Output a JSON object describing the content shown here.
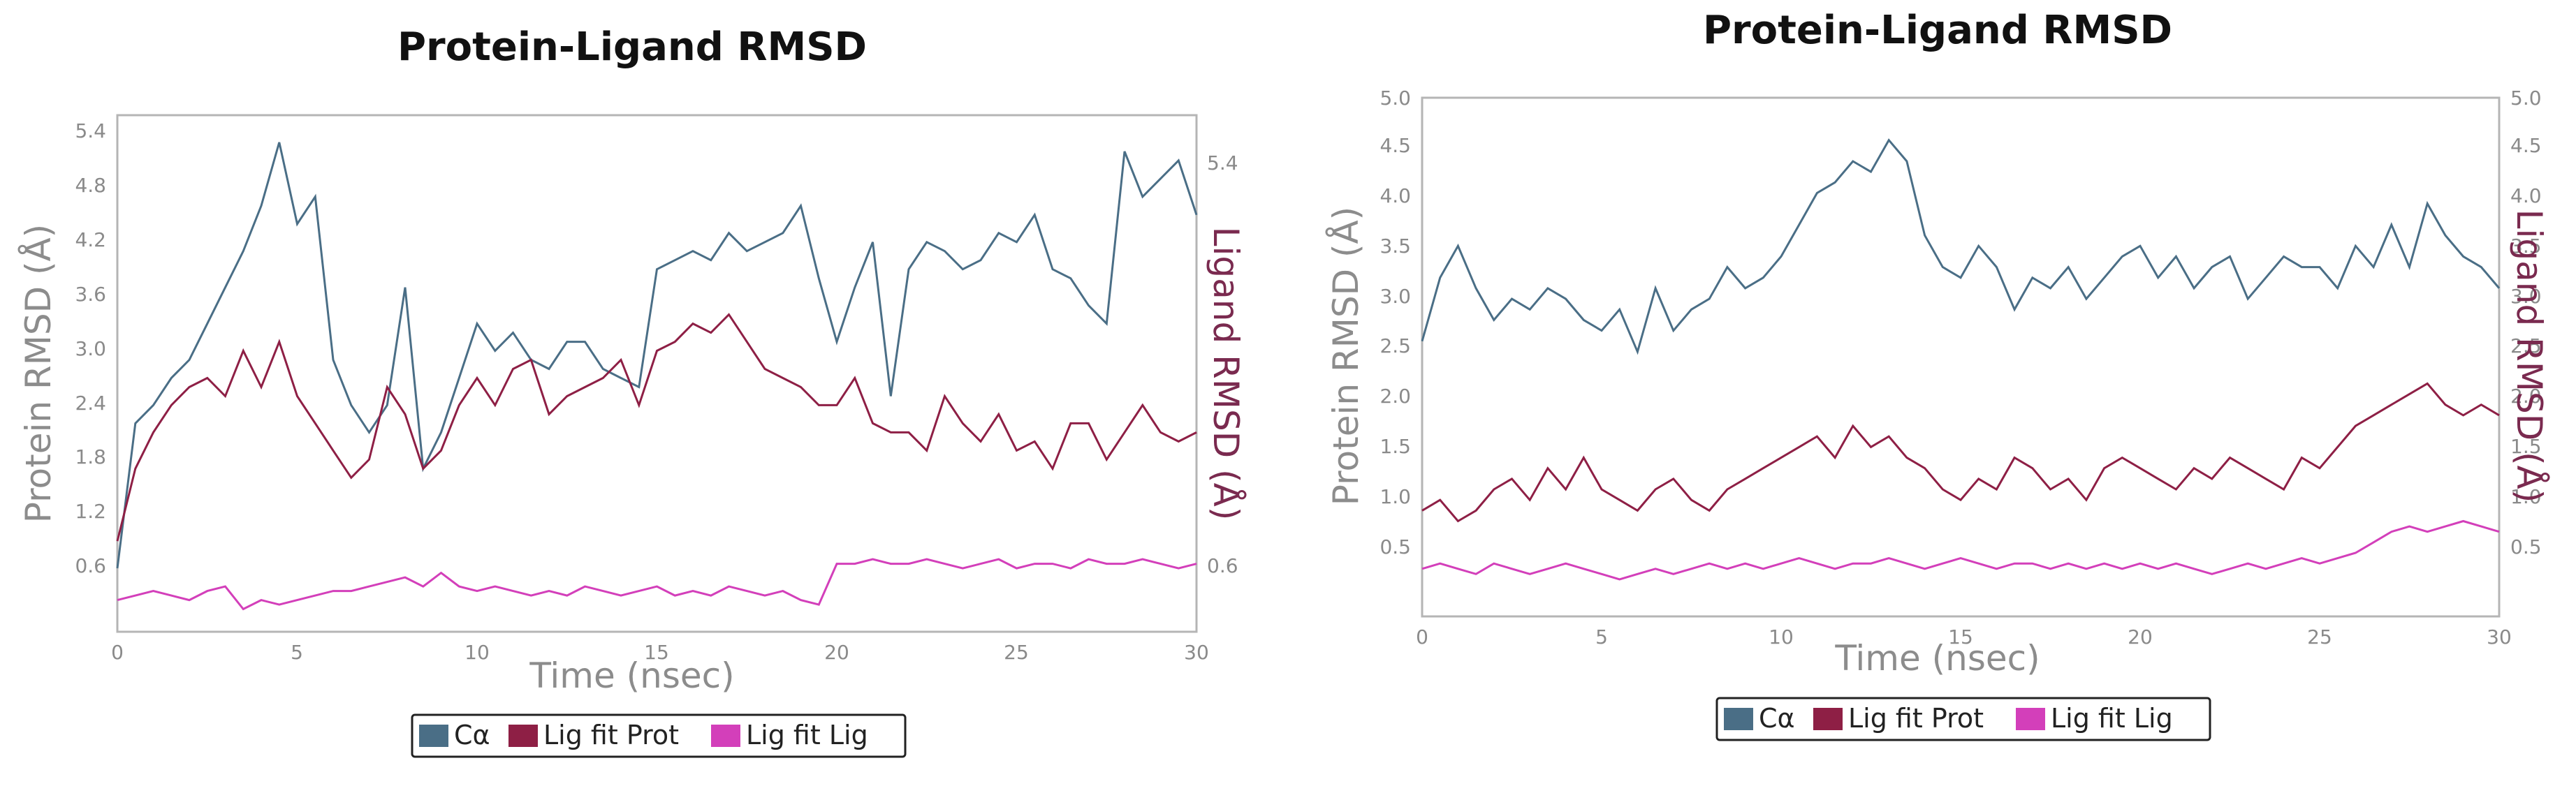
{
  "colors": {
    "ca": "#4a6e86",
    "lig_prot": "#8e1f45",
    "lig_lig": "#d33fba",
    "tick": "#8a8a8a"
  },
  "chart_data": [
    {
      "type": "line",
      "title": "Protein-Ligand RMSD",
      "xlabel": "Time (nsec)",
      "ylabel": "Protein RMSD (Å)",
      "ylabel_right": "Ligand RMSD (Å)",
      "xlim": [
        0,
        30
      ],
      "ylim": [
        0.1,
        5.8
      ],
      "xticks": [
        0,
        5,
        10,
        15,
        20,
        25,
        30
      ],
      "yticks": [
        "0.6",
        "1.2",
        "1.8",
        "2.4",
        "3.0",
        "3.6",
        "4.2",
        "4.8",
        "5.4"
      ],
      "yticks_right": [
        "0.6",
        "5.4"
      ],
      "legend": [
        "Cα",
        "Lig fit Prot",
        "Lig fit Lig"
      ],
      "series": [
        {
          "name": "Cα",
          "x": [
            0,
            0.5,
            1,
            1.5,
            2,
            2.5,
            3,
            3.5,
            4,
            4.5,
            5,
            5.5,
            6,
            6.5,
            7,
            7.5,
            8,
            8.5,
            9,
            9.5,
            10,
            10.5,
            11,
            11.5,
            12,
            12.5,
            13,
            13.5,
            14,
            14.5,
            15,
            15.5,
            16,
            16.5,
            17,
            17.5,
            18,
            18.5,
            19,
            19.5,
            20,
            20.5,
            21,
            21.5,
            22,
            22.5,
            23,
            23.5,
            24,
            24.5,
            25,
            25.5,
            26,
            26.5,
            27,
            27.5,
            28,
            28.5,
            29,
            29.5,
            30
          ],
          "values": [
            0.8,
            2.4,
            2.6,
            2.9,
            3.1,
            3.5,
            3.9,
            4.3,
            4.8,
            5.5,
            4.6,
            4.9,
            3.1,
            2.6,
            2.3,
            2.6,
            3.9,
            1.9,
            2.3,
            2.9,
            3.5,
            3.2,
            3.4,
            3.1,
            3.0,
            3.3,
            3.3,
            3.0,
            2.9,
            2.8,
            4.1,
            4.2,
            4.3,
            4.2,
            4.5,
            4.3,
            4.4,
            4.5,
            4.8,
            4.0,
            3.3,
            3.9,
            4.4,
            2.7,
            4.1,
            4.4,
            4.3,
            4.1,
            4.2,
            4.5,
            4.4,
            4.7,
            4.1,
            4.0,
            3.7,
            3.5,
            5.4,
            4.9,
            5.1,
            5.3,
            4.7
          ]
        },
        {
          "name": "Lig fit Prot",
          "x": [
            0,
            0.5,
            1,
            1.5,
            2,
            2.5,
            3,
            3.5,
            4,
            4.5,
            5,
            5.5,
            6,
            6.5,
            7,
            7.5,
            8,
            8.5,
            9,
            9.5,
            10,
            10.5,
            11,
            11.5,
            12,
            12.5,
            13,
            13.5,
            14,
            14.5,
            15,
            15.5,
            16,
            16.5,
            17,
            17.5,
            18,
            18.5,
            19,
            19.5,
            20,
            20.5,
            21,
            21.5,
            22,
            22.5,
            23,
            23.5,
            24,
            24.5,
            25,
            25.5,
            26,
            26.5,
            27,
            27.5,
            28,
            28.5,
            29,
            29.5,
            30
          ],
          "values": [
            1.1,
            1.9,
            2.3,
            2.6,
            2.8,
            2.9,
            2.7,
            3.2,
            2.8,
            3.3,
            2.7,
            2.4,
            2.1,
            1.8,
            2.0,
            2.8,
            2.5,
            1.9,
            2.1,
            2.6,
            2.9,
            2.6,
            3.0,
            3.1,
            2.5,
            2.7,
            2.8,
            2.9,
            3.1,
            2.6,
            3.2,
            3.3,
            3.5,
            3.4,
            3.6,
            3.3,
            3.0,
            2.9,
            2.8,
            2.6,
            2.6,
            2.9,
            2.4,
            2.3,
            2.3,
            2.1,
            2.7,
            2.4,
            2.2,
            2.5,
            2.1,
            2.2,
            1.9,
            2.4,
            2.4,
            2.0,
            2.3,
            2.6,
            2.3,
            2.2,
            2.3
          ]
        },
        {
          "name": "Lig fit Lig",
          "x": [
            0,
            0.5,
            1,
            1.5,
            2,
            2.5,
            3,
            3.5,
            4,
            4.5,
            5,
            5.5,
            6,
            6.5,
            7,
            7.5,
            8,
            8.5,
            9,
            9.5,
            10,
            10.5,
            11,
            11.5,
            12,
            12.5,
            13,
            13.5,
            14,
            14.5,
            15,
            15.5,
            16,
            16.5,
            17,
            17.5,
            18,
            18.5,
            19,
            19.5,
            20,
            20.5,
            21,
            21.5,
            22,
            22.5,
            23,
            23.5,
            24,
            24.5,
            25,
            25.5,
            26,
            26.5,
            27,
            27.5,
            28,
            28.5,
            29,
            29.5,
            30
          ],
          "values": [
            0.45,
            0.5,
            0.55,
            0.5,
            0.45,
            0.55,
            0.6,
            0.35,
            0.45,
            0.4,
            0.45,
            0.5,
            0.55,
            0.55,
            0.6,
            0.65,
            0.7,
            0.6,
            0.75,
            0.6,
            0.55,
            0.6,
            0.55,
            0.5,
            0.55,
            0.5,
            0.6,
            0.55,
            0.5,
            0.55,
            0.6,
            0.5,
            0.55,
            0.5,
            0.6,
            0.55,
            0.5,
            0.55,
            0.45,
            0.4,
            0.85,
            0.85,
            0.9,
            0.85,
            0.85,
            0.9,
            0.85,
            0.8,
            0.85,
            0.9,
            0.8,
            0.85,
            0.85,
            0.8,
            0.9,
            0.85,
            0.85,
            0.9,
            0.85,
            0.8,
            0.85
          ]
        }
      ]
    },
    {
      "type": "line",
      "title": "Protein-Ligand RMSD",
      "xlabel": "Time (nsec)",
      "ylabel": "Protein RMSD (Å)",
      "ylabel_right": "Ligand RMSD (Å)",
      "xlim": [
        0,
        30
      ],
      "ylim": [
        0.1,
        5.0
      ],
      "xticks": [
        0,
        5,
        10,
        15,
        20,
        25,
        30
      ],
      "yticks": [
        "0.5",
        "1.0",
        "1.5",
        "2.0",
        "2.5",
        "3.0",
        "3.5",
        "4.0",
        "4.5",
        "5.0"
      ],
      "yticks_right": [
        "0.5",
        "1.0",
        "1.5",
        "2.0",
        "2.5",
        "3.0",
        "3.5",
        "4.0",
        "4.5",
        "5.0"
      ],
      "legend": [
        "Cα",
        "Lig fit Prot",
        "Lig fit Lig"
      ],
      "series": [
        {
          "name": "Cα",
          "x": [
            0,
            0.5,
            1,
            1.5,
            2,
            2.5,
            3,
            3.5,
            4,
            4.5,
            5,
            5.5,
            6,
            6.5,
            7,
            7.5,
            8,
            8.5,
            9,
            9.5,
            10,
            10.5,
            11,
            11.5,
            12,
            12.5,
            13,
            13.5,
            14,
            14.5,
            15,
            15.5,
            16,
            16.5,
            17,
            17.5,
            18,
            18.5,
            19,
            19.5,
            20,
            20.5,
            21,
            21.5,
            22,
            22.5,
            23,
            23.5,
            24,
            24.5,
            25,
            25.5,
            26,
            26.5,
            27,
            27.5,
            28,
            28.5,
            29,
            29.5,
            30
          ],
          "values": [
            2.7,
            3.3,
            3.6,
            3.2,
            2.9,
            3.1,
            3.0,
            3.2,
            3.1,
            2.9,
            2.8,
            3.0,
            2.6,
            3.2,
            2.8,
            3.0,
            3.1,
            3.4,
            3.2,
            3.3,
            3.5,
            3.8,
            4.1,
            4.2,
            4.4,
            4.3,
            4.6,
            4.4,
            3.7,
            3.4,
            3.3,
            3.6,
            3.4,
            3.0,
            3.3,
            3.2,
            3.4,
            3.1,
            3.3,
            3.5,
            3.6,
            3.3,
            3.5,
            3.2,
            3.4,
            3.5,
            3.1,
            3.3,
            3.5,
            3.4,
            3.4,
            3.2,
            3.6,
            3.4,
            3.8,
            3.4,
            4.0,
            3.7,
            3.5,
            3.4,
            3.2
          ]
        },
        {
          "name": "Lig fit Prot",
          "x": [
            0,
            0.5,
            1,
            1.5,
            2,
            2.5,
            3,
            3.5,
            4,
            4.5,
            5,
            5.5,
            6,
            6.5,
            7,
            7.5,
            8,
            8.5,
            9,
            9.5,
            10,
            10.5,
            11,
            11.5,
            12,
            12.5,
            13,
            13.5,
            14,
            14.5,
            15,
            15.5,
            16,
            16.5,
            17,
            17.5,
            18,
            18.5,
            19,
            19.5,
            20,
            20.5,
            21,
            21.5,
            22,
            22.5,
            23,
            23.5,
            24,
            24.5,
            25,
            25.5,
            26,
            26.5,
            27,
            27.5,
            28,
            28.5,
            29,
            29.5,
            30
          ],
          "values": [
            1.1,
            1.2,
            1.0,
            1.1,
            1.3,
            1.4,
            1.2,
            1.5,
            1.3,
            1.6,
            1.3,
            1.2,
            1.1,
            1.3,
            1.4,
            1.2,
            1.1,
            1.3,
            1.4,
            1.5,
            1.6,
            1.7,
            1.8,
            1.6,
            1.9,
            1.7,
            1.8,
            1.6,
            1.5,
            1.3,
            1.2,
            1.4,
            1.3,
            1.6,
            1.5,
            1.3,
            1.4,
            1.2,
            1.5,
            1.6,
            1.5,
            1.4,
            1.3,
            1.5,
            1.4,
            1.6,
            1.5,
            1.4,
            1.3,
            1.6,
            1.5,
            1.7,
            1.9,
            2.0,
            2.1,
            2.2,
            2.3,
            2.1,
            2.0,
            2.1,
            2.0
          ]
        },
        {
          "name": "Lig fit Lig",
          "x": [
            0,
            0.5,
            1,
            1.5,
            2,
            2.5,
            3,
            3.5,
            4,
            4.5,
            5,
            5.5,
            6,
            6.5,
            7,
            7.5,
            8,
            8.5,
            9,
            9.5,
            10,
            10.5,
            11,
            11.5,
            12,
            12.5,
            13,
            13.5,
            14,
            14.5,
            15,
            15.5,
            16,
            16.5,
            17,
            17.5,
            18,
            18.5,
            19,
            19.5,
            20,
            20.5,
            21,
            21.5,
            22,
            22.5,
            23,
            23.5,
            24,
            24.5,
            25,
            25.5,
            26,
            26.5,
            27,
            27.5,
            28,
            28.5,
            29,
            29.5,
            30
          ],
          "values": [
            0.55,
            0.6,
            0.55,
            0.5,
            0.6,
            0.55,
            0.5,
            0.55,
            0.6,
            0.55,
            0.5,
            0.45,
            0.5,
            0.55,
            0.5,
            0.55,
            0.6,
            0.55,
            0.6,
            0.55,
            0.6,
            0.65,
            0.6,
            0.55,
            0.6,
            0.6,
            0.65,
            0.6,
            0.55,
            0.6,
            0.65,
            0.6,
            0.55,
            0.6,
            0.6,
            0.55,
            0.6,
            0.55,
            0.6,
            0.55,
            0.6,
            0.55,
            0.6,
            0.55,
            0.5,
            0.55,
            0.6,
            0.55,
            0.6,
            0.65,
            0.6,
            0.65,
            0.7,
            0.8,
            0.9,
            0.95,
            0.9,
            0.95,
            1.0,
            0.95,
            0.9
          ]
        }
      ]
    }
  ]
}
